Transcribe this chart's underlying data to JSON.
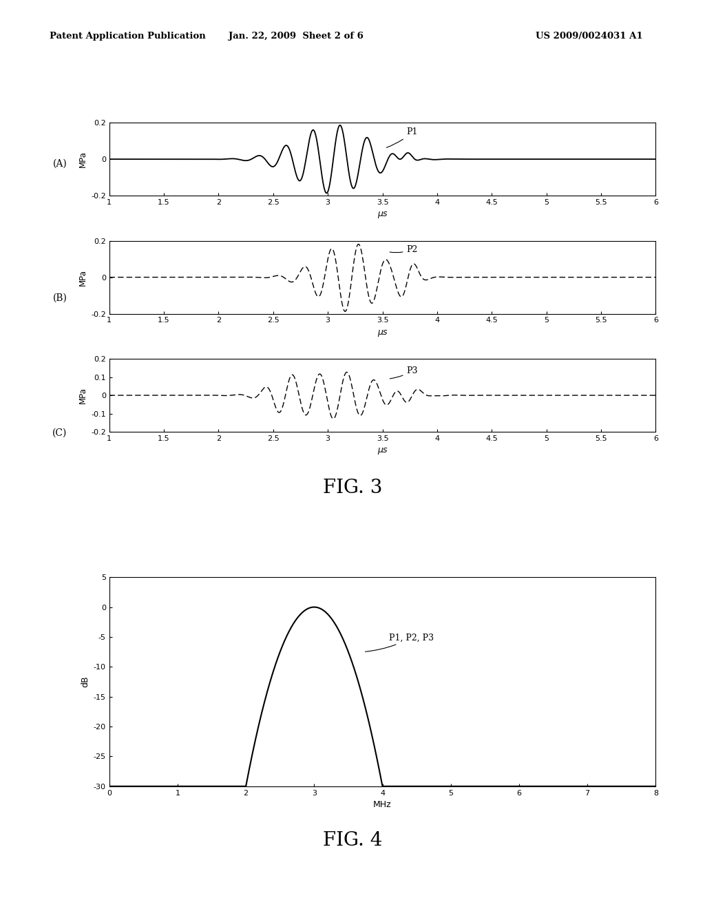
{
  "header_left": "Patent Application Publication",
  "header_mid": "Jan. 22, 2009  Sheet 2 of 6",
  "header_right": "US 2009/0024031 A1",
  "fig3_label": "FIG. 3",
  "fig4_label": "FIG. 4",
  "panel_labels": [
    "(A)",
    "(B)",
    "(C)"
  ],
  "ylabels": [
    "MPa",
    "MPa",
    "MPa"
  ],
  "xlabel": "μs",
  "xlim": [
    1,
    6
  ],
  "ylim_abc": [
    -0.2,
    0.2
  ],
  "xticks": [
    1,
    1.5,
    2,
    2.5,
    3,
    3.5,
    4,
    4.5,
    5,
    5.5,
    6
  ],
  "xtick_labels": [
    "1",
    "1.5",
    "2",
    "2.5",
    "3",
    "3.5",
    "4",
    "4.5",
    "5",
    "5.5",
    "6"
  ],
  "yticks_ab": [
    -0.2,
    0,
    0.2
  ],
  "ytick_labels_ab": [
    "-0.2",
    "0",
    "0.2"
  ],
  "yticks_c": [
    -0.2,
    -0.1,
    0,
    0.1,
    0.2
  ],
  "ytick_labels_c": [
    "-0.2",
    "-0.1",
    "0",
    "0.1",
    "0.2"
  ],
  "annotation_A": "P1",
  "annotation_B": "P2",
  "annotation_C": "P3",
  "annotation_D": "P1, P2, P3",
  "fig4_xlabel": "MHz",
  "fig4_ylabel": "dB",
  "fig4_xlim": [
    0,
    8
  ],
  "fig4_ylim": [
    -30,
    5
  ],
  "fig4_xticks": [
    0,
    1,
    2,
    3,
    4,
    5,
    6,
    7,
    8
  ],
  "fig4_xtick_labels": [
    "0",
    "1",
    "2",
    "3",
    "4",
    "5",
    "6",
    "7",
    "8"
  ],
  "fig4_yticks": [
    -30,
    -25,
    -20,
    -15,
    -10,
    -5,
    0,
    5
  ],
  "fig4_ytick_labels": [
    "-30",
    "-25",
    "-20",
    "-15",
    "-10",
    "-5",
    "0",
    "5"
  ]
}
